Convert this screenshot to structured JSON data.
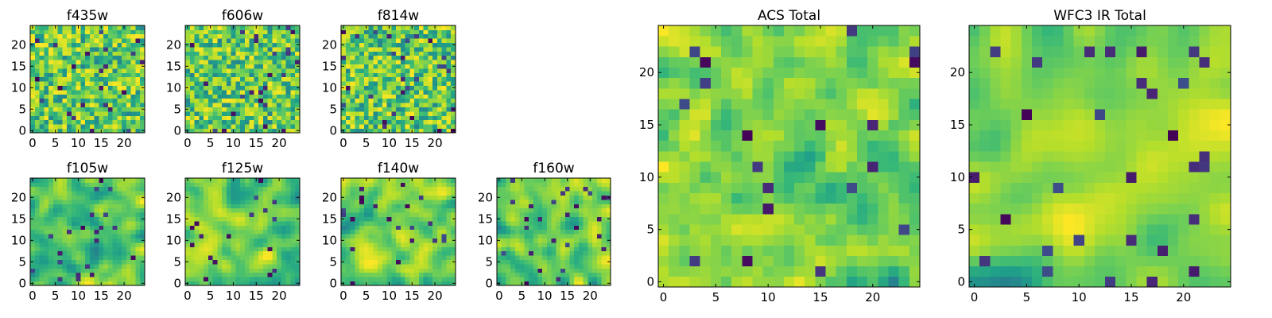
{
  "figure": {
    "panels": [
      {
        "id": "f435w",
        "title": "f435w",
        "xticks": [
          "0",
          "5",
          "10",
          "15",
          "20"
        ],
        "yticks": [
          "0",
          "5",
          "10",
          "15",
          "20"
        ]
      },
      {
        "id": "f606w",
        "title": "f606w",
        "xticks": [
          "0",
          "5",
          "10",
          "15",
          "20"
        ],
        "yticks": [
          "0",
          "5",
          "10",
          "15",
          "20"
        ]
      },
      {
        "id": "f814w",
        "title": "f814w",
        "xticks": [
          "0",
          "5",
          "10",
          "15",
          "20"
        ],
        "yticks": [
          "0",
          "5",
          "10",
          "15",
          "20"
        ]
      },
      {
        "id": "f105w",
        "title": "f105w",
        "xticks": [
          "0",
          "5",
          "10",
          "15",
          "20"
        ],
        "yticks": [
          "0",
          "5",
          "10",
          "15",
          "20"
        ]
      },
      {
        "id": "f125w",
        "title": "f125w",
        "xticks": [
          "0",
          "5",
          "10",
          "15",
          "20"
        ],
        "yticks": [
          "0",
          "5",
          "10",
          "15",
          "20"
        ]
      },
      {
        "id": "f140w",
        "title": "f140w",
        "xticks": [
          "0",
          "5",
          "10",
          "15",
          "20"
        ],
        "yticks": [
          "0",
          "5",
          "10",
          "15",
          "20"
        ]
      },
      {
        "id": "f160w",
        "title": "f160w",
        "xticks": [
          "0",
          "5",
          "10",
          "15",
          "20"
        ],
        "yticks": [
          "0",
          "5",
          "10",
          "15",
          "20"
        ]
      },
      {
        "id": "acs-total",
        "title": "ACS Total",
        "xticks": [
          "0",
          "5",
          "10",
          "15",
          "20"
        ],
        "yticks": [
          "0",
          "5",
          "10",
          "15",
          "20"
        ]
      },
      {
        "id": "wfc3-ir-total",
        "title": "WFC3 IR Total",
        "xticks": [
          "0",
          "5",
          "10",
          "15",
          "20"
        ],
        "yticks": [
          "0",
          "5",
          "10",
          "15",
          "20"
        ]
      }
    ]
  },
  "chart_data": [
    {
      "type": "heatmap",
      "title": "f435w",
      "grid_size": [
        25,
        25
      ],
      "xlim": [
        -0.5,
        24.5
      ],
      "ylim": [
        -0.5,
        24.5
      ],
      "origin": "lower",
      "colormap": "viridis",
      "grid": false,
      "seed": 11,
      "smoothing": 0
    },
    {
      "type": "heatmap",
      "title": "f606w",
      "grid_size": [
        25,
        25
      ],
      "xlim": [
        -0.5,
        24.5
      ],
      "ylim": [
        -0.5,
        24.5
      ],
      "origin": "lower",
      "colormap": "viridis",
      "grid": false,
      "seed": 23,
      "smoothing": 0
    },
    {
      "type": "heatmap",
      "title": "f814w",
      "grid_size": [
        25,
        25
      ],
      "xlim": [
        -0.5,
        24.5
      ],
      "ylim": [
        -0.5,
        24.5
      ],
      "origin": "lower",
      "colormap": "viridis",
      "grid": false,
      "seed": 37,
      "smoothing": 0
    },
    {
      "type": "heatmap",
      "title": "f105w",
      "grid_size": [
        25,
        25
      ],
      "xlim": [
        -0.5,
        24.5
      ],
      "ylim": [
        -0.5,
        24.5
      ],
      "origin": "lower",
      "colormap": "viridis",
      "grid": false,
      "seed": 41,
      "smoothing": 2
    },
    {
      "type": "heatmap",
      "title": "f125w",
      "grid_size": [
        25,
        25
      ],
      "xlim": [
        -0.5,
        24.5
      ],
      "ylim": [
        -0.5,
        24.5
      ],
      "origin": "lower",
      "colormap": "viridis",
      "grid": false,
      "seed": 53,
      "smoothing": 2
    },
    {
      "type": "heatmap",
      "title": "f140w",
      "grid_size": [
        25,
        25
      ],
      "xlim": [
        -0.5,
        24.5
      ],
      "ylim": [
        -0.5,
        24.5
      ],
      "origin": "lower",
      "colormap": "viridis",
      "grid": false,
      "seed": 67,
      "smoothing": 2
    },
    {
      "type": "heatmap",
      "title": "f160w",
      "grid_size": [
        25,
        25
      ],
      "xlim": [
        -0.5,
        24.5
      ],
      "ylim": [
        -0.5,
        24.5
      ],
      "origin": "lower",
      "colormap": "viridis",
      "grid": false,
      "seed": 79,
      "smoothing": 2
    },
    {
      "type": "heatmap",
      "title": "ACS Total",
      "grid_size": [
        25,
        25
      ],
      "xlim": [
        -0.5,
        24.5
      ],
      "ylim": [
        -0.5,
        24.5
      ],
      "origin": "lower",
      "colormap": "viridis",
      "grid": false,
      "seed": 83,
      "smoothing": 1
    },
    {
      "type": "heatmap",
      "title": "WFC3 IR Total",
      "grid_size": [
        25,
        25
      ],
      "xlim": [
        -0.5,
        24.5
      ],
      "ylim": [
        -0.5,
        24.5
      ],
      "origin": "lower",
      "colormap": "viridis",
      "grid": false,
      "seed": 97,
      "smoothing": 3
    }
  ]
}
